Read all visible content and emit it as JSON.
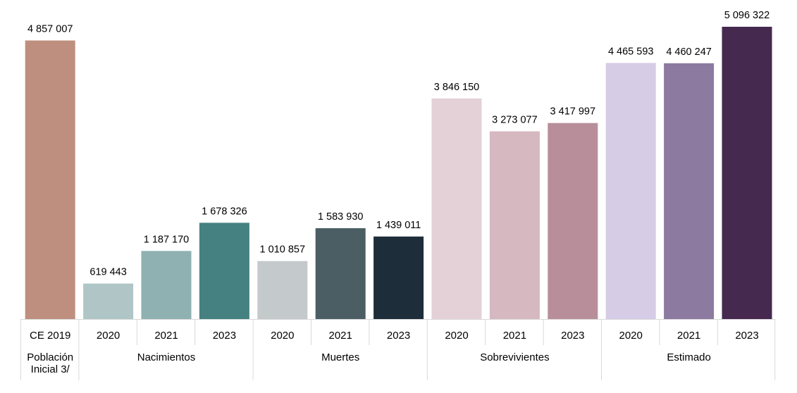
{
  "chart_data": {
    "type": "bar",
    "title": "",
    "xlabel": "",
    "ylabel": "",
    "ylim": [
      0,
      5096322
    ],
    "grid": false,
    "legend": "none",
    "groups": [
      {
        "name": "Población Inicial 3/",
        "name_lines": [
          "Población",
          "Inicial 3/"
        ],
        "categories": [
          "CE 2019"
        ],
        "values": [
          4857007
        ],
        "value_labels": [
          "4 857 007"
        ],
        "colors": [
          "#be8f7e"
        ]
      },
      {
        "name": "Nacimientos",
        "categories": [
          "2020",
          "2021",
          "2023"
        ],
        "values": [
          619443,
          1187170,
          1678326
        ],
        "value_labels": [
          "619 443",
          "1 187 170",
          "1 678 326"
        ],
        "colors": [
          "#b0c6c6",
          "#8fb1b1",
          "#448180"
        ]
      },
      {
        "name": "Muertes",
        "categories": [
          "2020",
          "2021",
          "2023"
        ],
        "values": [
          1010857,
          1583930,
          1439011
        ],
        "value_labels": [
          "1 010 857",
          "1 583 930",
          "1 439 011"
        ],
        "colors": [
          "#c4c9cb",
          "#4b5e64",
          "#1e2d3a"
        ]
      },
      {
        "name": "Sobrevivientes",
        "categories": [
          "2020",
          "2021",
          "2023"
        ],
        "values": [
          3846150,
          3273077,
          3417997
        ],
        "value_labels": [
          "3 846 150",
          "3 273 077",
          "3 417 997"
        ],
        "colors": [
          "#e3d1d7",
          "#d6b8c1",
          "#b98e9b"
        ]
      },
      {
        "name": "Estimado",
        "categories": [
          "2020",
          "2021",
          "2023"
        ],
        "values": [
          4465593,
          4460247,
          5096322
        ],
        "value_labels": [
          "4 465 593",
          "4 460 247",
          "5 096 322"
        ],
        "colors": [
          "#d6cce5",
          "#8c7aa1",
          "#45294f"
        ]
      }
    ]
  }
}
